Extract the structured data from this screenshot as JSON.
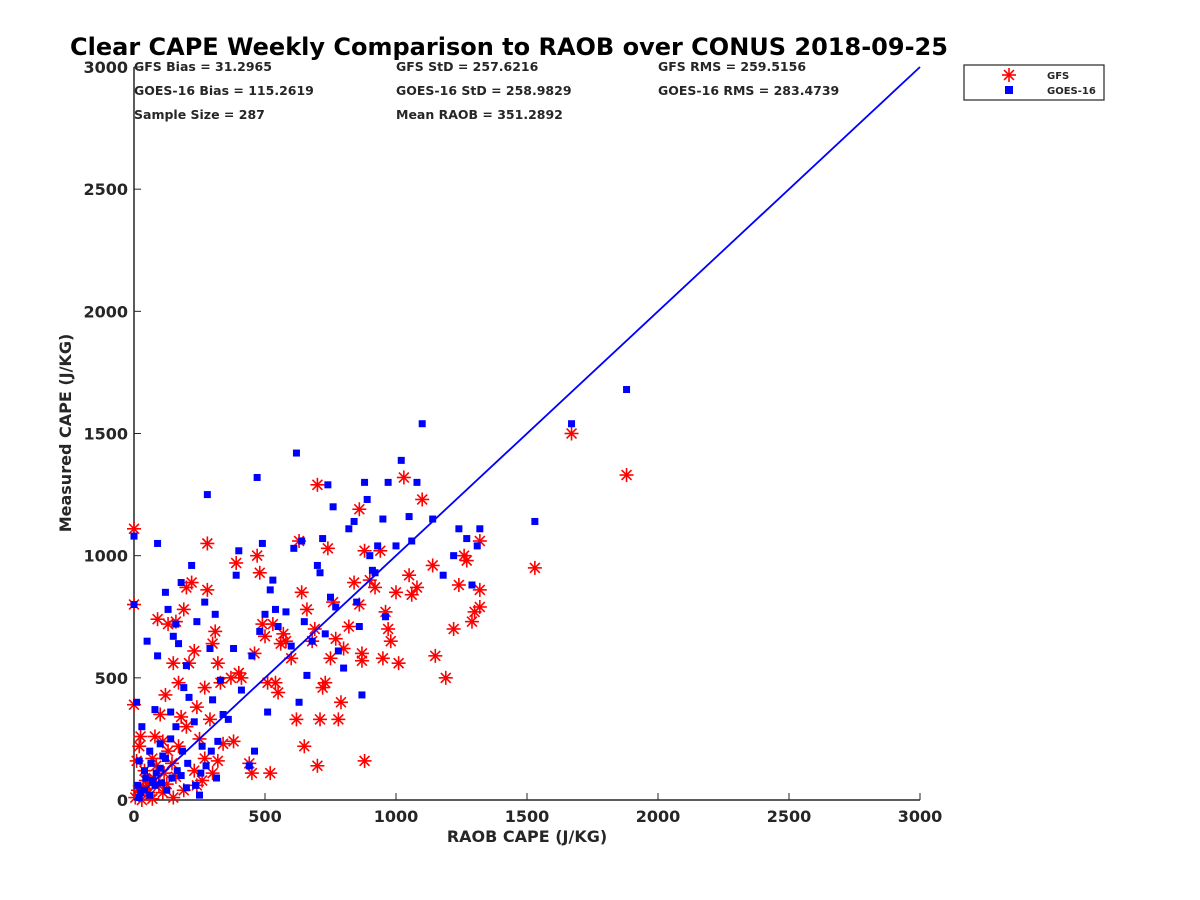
{
  "chart_data": {
    "type": "scatter",
    "title": "Clear CAPE Weekly Comparison to RAOB over CONUS 2018-09-25",
    "xlabel": "RAOB CAPE (J/KG)",
    "ylabel": "Measured CAPE (J/KG)",
    "xlim": [
      0,
      3000
    ],
    "ylim": [
      0,
      3000
    ],
    "xticks": [
      "0",
      "500",
      "1000",
      "1500",
      "2000",
      "2500",
      "3000"
    ],
    "yticks": [
      "0",
      "500",
      "1000",
      "1500",
      "2000",
      "2500",
      "3000"
    ],
    "grid": false,
    "legend_position": "top-right",
    "reference_line": [
      [
        0,
        0
      ],
      [
        3000,
        3000
      ]
    ],
    "colors": {
      "GFS": "#ff0000",
      "GOES-16": "#0000ff",
      "reference_line": "#0000ff"
    },
    "stats": [
      [
        "GFS Bias = 31.2965",
        "GFS StD = 257.6216",
        "GFS RMS = 259.5156"
      ],
      [
        "GOES-16 Bias = 115.2619",
        "GOES-16 StD = 258.9829",
        "GOES-16 RMS = 283.4739"
      ],
      [
        "Sample Size = 287",
        "Mean RAOB = 351.2892",
        ""
      ]
    ],
    "series": [
      {
        "name": "GFS",
        "marker": "asterisk",
        "points": [
          [
            0,
            1110
          ],
          [
            0,
            800
          ],
          [
            0,
            390
          ],
          [
            10,
            160
          ],
          [
            20,
            220
          ],
          [
            25,
            260
          ],
          [
            30,
            0
          ],
          [
            40,
            120
          ],
          [
            50,
            60
          ],
          [
            60,
            20
          ],
          [
            70,
            170
          ],
          [
            80,
            260
          ],
          [
            90,
            740
          ],
          [
            100,
            350
          ],
          [
            110,
            240
          ],
          [
            120,
            430
          ],
          [
            130,
            720
          ],
          [
            150,
            560
          ],
          [
            160,
            730
          ],
          [
            170,
            480
          ],
          [
            180,
            340
          ],
          [
            190,
            780
          ],
          [
            200,
            870
          ],
          [
            210,
            560
          ],
          [
            220,
            890
          ],
          [
            230,
            610
          ],
          [
            240,
            380
          ],
          [
            250,
            250
          ],
          [
            270,
            460
          ],
          [
            280,
            1050
          ],
          [
            280,
            860
          ],
          [
            290,
            330
          ],
          [
            300,
            640
          ],
          [
            310,
            690
          ],
          [
            320,
            560
          ],
          [
            330,
            480
          ],
          [
            340,
            230
          ],
          [
            370,
            500
          ],
          [
            380,
            240
          ],
          [
            390,
            970
          ],
          [
            400,
            520
          ],
          [
            410,
            500
          ],
          [
            440,
            150
          ],
          [
            450,
            110
          ],
          [
            460,
            600
          ],
          [
            470,
            1000
          ],
          [
            480,
            930
          ],
          [
            490,
            720
          ],
          [
            500,
            670
          ],
          [
            510,
            480
          ],
          [
            520,
            110
          ],
          [
            530,
            720
          ],
          [
            540,
            480
          ],
          [
            550,
            440
          ],
          [
            560,
            640
          ],
          [
            570,
            680
          ],
          [
            580,
            650
          ],
          [
            600,
            580
          ],
          [
            620,
            330
          ],
          [
            630,
            1060
          ],
          [
            640,
            850
          ],
          [
            650,
            220
          ],
          [
            660,
            780
          ],
          [
            680,
            650
          ],
          [
            690,
            700
          ],
          [
            700,
            140
          ],
          [
            700,
            1290
          ],
          [
            710,
            330
          ],
          [
            720,
            460
          ],
          [
            730,
            480
          ],
          [
            740,
            1030
          ],
          [
            750,
            580
          ],
          [
            760,
            810
          ],
          [
            770,
            660
          ],
          [
            780,
            330
          ],
          [
            790,
            400
          ],
          [
            800,
            620
          ],
          [
            820,
            710
          ],
          [
            840,
            890
          ],
          [
            860,
            800
          ],
          [
            860,
            1190
          ],
          [
            870,
            570
          ],
          [
            870,
            600
          ],
          [
            880,
            160
          ],
          [
            880,
            1020
          ],
          [
            900,
            900
          ],
          [
            920,
            870
          ],
          [
            940,
            1020
          ],
          [
            950,
            580
          ],
          [
            960,
            770
          ],
          [
            970,
            700
          ],
          [
            980,
            650
          ],
          [
            1000,
            850
          ],
          [
            1010,
            560
          ],
          [
            1030,
            1320
          ],
          [
            1050,
            920
          ],
          [
            1060,
            840
          ],
          [
            1080,
            870
          ],
          [
            1100,
            1230
          ],
          [
            1140,
            960
          ],
          [
            1150,
            590
          ],
          [
            1190,
            500
          ],
          [
            1220,
            700
          ],
          [
            1240,
            880
          ],
          [
            1260,
            1000
          ],
          [
            1270,
            980
          ],
          [
            1290,
            730
          ],
          [
            1300,
            770
          ],
          [
            1320,
            790
          ],
          [
            1320,
            860
          ],
          [
            1320,
            1060
          ],
          [
            1530,
            950
          ],
          [
            1670,
            1500
          ],
          [
            1880,
            1330
          ],
          [
            20,
            20
          ],
          [
            35,
            50
          ],
          [
            55,
            30
          ],
          [
            75,
            90
          ],
          [
            95,
            60
          ],
          [
            115,
            110
          ],
          [
            130,
            200
          ],
          [
            145,
            150
          ],
          [
            170,
            220
          ],
          [
            200,
            300
          ],
          [
            230,
            120
          ],
          [
            260,
            80
          ],
          [
            270,
            170
          ],
          [
            300,
            110
          ],
          [
            320,
            160
          ],
          [
            240,
            60
          ],
          [
            190,
            40
          ],
          [
            150,
            10
          ],
          [
            110,
            30
          ],
          [
            70,
            5
          ],
          [
            45,
            80
          ],
          [
            15,
            40
          ],
          [
            5,
            10
          ],
          [
            85,
            140
          ],
          [
            125,
            65
          ],
          [
            160,
            95
          ]
        ]
      },
      {
        "name": "GOES-16",
        "marker": "square",
        "points": [
          [
            0,
            1080
          ],
          [
            0,
            800
          ],
          [
            10,
            400
          ],
          [
            20,
            160
          ],
          [
            30,
            300
          ],
          [
            40,
            120
          ],
          [
            50,
            650
          ],
          [
            60,
            200
          ],
          [
            70,
            80
          ],
          [
            80,
            370
          ],
          [
            90,
            1050
          ],
          [
            90,
            590
          ],
          [
            100,
            230
          ],
          [
            110,
            180
          ],
          [
            120,
            850
          ],
          [
            130,
            780
          ],
          [
            140,
            360
          ],
          [
            150,
            670
          ],
          [
            160,
            720
          ],
          [
            170,
            640
          ],
          [
            180,
            890
          ],
          [
            190,
            460
          ],
          [
            200,
            550
          ],
          [
            210,
            420
          ],
          [
            220,
            960
          ],
          [
            230,
            320
          ],
          [
            240,
            730
          ],
          [
            250,
            20
          ],
          [
            260,
            220
          ],
          [
            270,
            810
          ],
          [
            280,
            1250
          ],
          [
            290,
            620
          ],
          [
            300,
            410
          ],
          [
            310,
            760
          ],
          [
            320,
            240
          ],
          [
            330,
            490
          ],
          [
            340,
            350
          ],
          [
            360,
            330
          ],
          [
            380,
            620
          ],
          [
            390,
            920
          ],
          [
            400,
            1020
          ],
          [
            410,
            450
          ],
          [
            440,
            140
          ],
          [
            450,
            590
          ],
          [
            460,
            200
          ],
          [
            470,
            1320
          ],
          [
            480,
            690
          ],
          [
            490,
            1050
          ],
          [
            500,
            760
          ],
          [
            510,
            360
          ],
          [
            520,
            860
          ],
          [
            530,
            900
          ],
          [
            540,
            780
          ],
          [
            550,
            710
          ],
          [
            580,
            770
          ],
          [
            600,
            630
          ],
          [
            610,
            1030
          ],
          [
            620,
            1420
          ],
          [
            630,
            400
          ],
          [
            640,
            1060
          ],
          [
            650,
            730
          ],
          [
            660,
            510
          ],
          [
            680,
            650
          ],
          [
            700,
            960
          ],
          [
            710,
            930
          ],
          [
            720,
            1070
          ],
          [
            730,
            680
          ],
          [
            740,
            1290
          ],
          [
            750,
            830
          ],
          [
            760,
            1200
          ],
          [
            770,
            790
          ],
          [
            780,
            610
          ],
          [
            800,
            540
          ],
          [
            820,
            1110
          ],
          [
            840,
            1140
          ],
          [
            850,
            810
          ],
          [
            860,
            710
          ],
          [
            870,
            430
          ],
          [
            880,
            1300
          ],
          [
            890,
            1230
          ],
          [
            900,
            1000
          ],
          [
            910,
            940
          ],
          [
            920,
            930
          ],
          [
            930,
            1040
          ],
          [
            950,
            1150
          ],
          [
            960,
            750
          ],
          [
            970,
            1300
          ],
          [
            1000,
            1040
          ],
          [
            1020,
            1390
          ],
          [
            1050,
            1160
          ],
          [
            1060,
            1060
          ],
          [
            1080,
            1300
          ],
          [
            1100,
            1540
          ],
          [
            1140,
            1150
          ],
          [
            1180,
            920
          ],
          [
            1220,
            1000
          ],
          [
            1240,
            1110
          ],
          [
            1270,
            1070
          ],
          [
            1290,
            880
          ],
          [
            1310,
            1040
          ],
          [
            1320,
            1110
          ],
          [
            1530,
            1140
          ],
          [
            1670,
            1540
          ],
          [
            1880,
            1680
          ],
          [
            15,
            60
          ],
          [
            25,
            30
          ],
          [
            45,
            90
          ],
          [
            65,
            150
          ],
          [
            85,
            110
          ],
          [
            105,
            70
          ],
          [
            125,
            40
          ],
          [
            145,
            90
          ],
          [
            165,
            120
          ],
          [
            185,
            200
          ],
          [
            205,
            150
          ],
          [
            235,
            60
          ],
          [
            255,
            110
          ],
          [
            275,
            140
          ],
          [
            295,
            200
          ],
          [
            315,
            90
          ],
          [
            20,
            10
          ],
          [
            40,
            40
          ],
          [
            60,
            20
          ],
          [
            80,
            60
          ],
          [
            100,
            130
          ],
          [
            120,
            170
          ],
          [
            140,
            250
          ],
          [
            160,
            300
          ],
          [
            180,
            100
          ],
          [
            200,
            50
          ]
        ]
      }
    ]
  }
}
